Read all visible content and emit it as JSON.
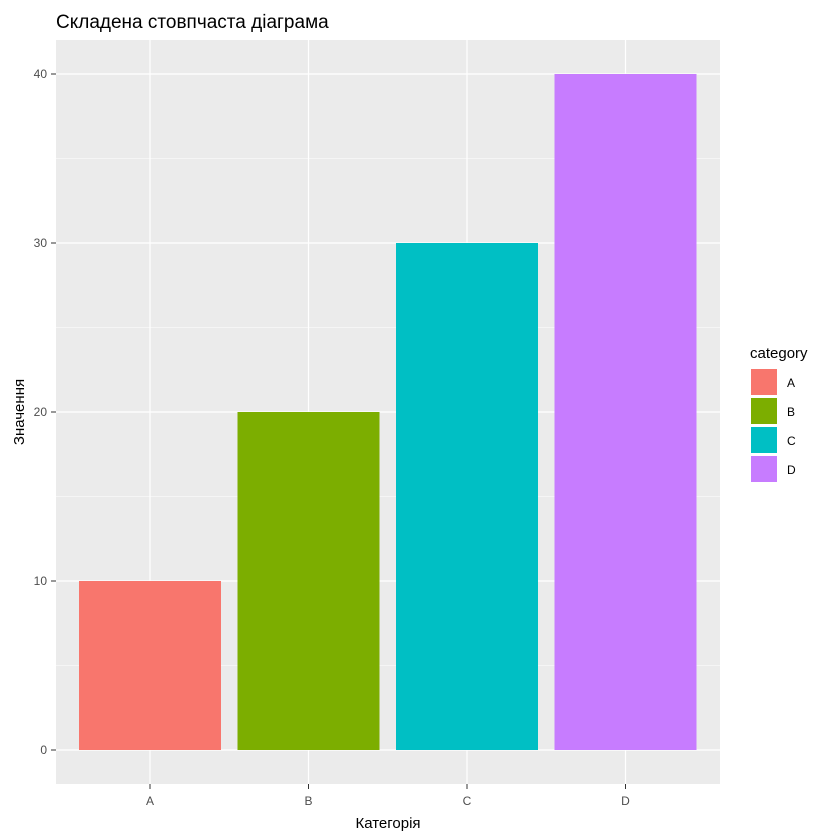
{
  "chart_data": {
    "type": "bar",
    "title": "Складена стовпчаста діаграма",
    "xlabel": "Категорія",
    "ylabel": "Значення",
    "categories": [
      "A",
      "B",
      "C",
      "D"
    ],
    "values": [
      10,
      20,
      30,
      40
    ],
    "colors": [
      "#F8766D",
      "#7CAE00",
      "#00BFC4",
      "#C77CFF"
    ],
    "ylim": [
      0,
      40
    ],
    "yticks": [
      0,
      10,
      20,
      30,
      40
    ],
    "grid": true,
    "legend": {
      "title": "category",
      "placement": "right",
      "entries": [
        "A",
        "B",
        "C",
        "D"
      ]
    }
  }
}
